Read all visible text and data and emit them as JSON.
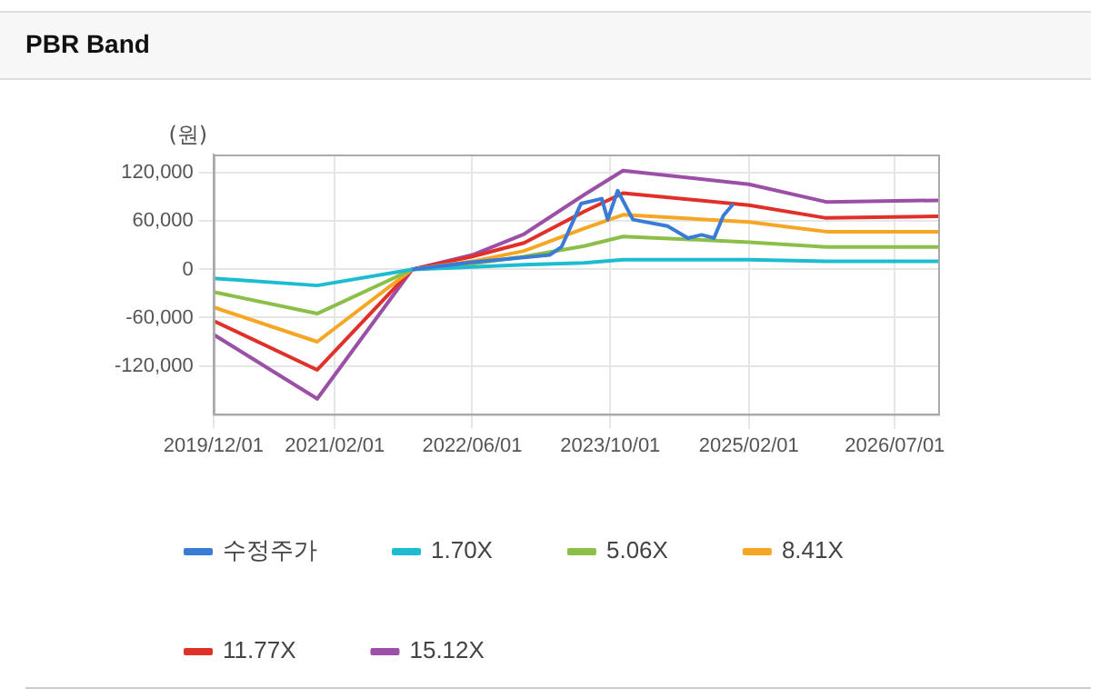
{
  "chart_data": {
    "type": "line",
    "title": "PBR Band",
    "ylabel": "(원)",
    "xlim": [
      "2019-12-01",
      "2026-12-01"
    ],
    "xticks": [
      {
        "value": "2019-12-01",
        "label": "2019/12/01"
      },
      {
        "value": "2021-02-01",
        "label": "2021/02/01"
      },
      {
        "value": "2022-06-01",
        "label": "2022/06/01"
      },
      {
        "value": "2023-10-01",
        "label": "2023/10/01"
      },
      {
        "value": "2025-02-01",
        "label": "2025/02/01"
      },
      {
        "value": "2026-07-01",
        "label": "2026/07/01"
      }
    ],
    "ylim": [
      -180000,
      143000
    ],
    "yticks": [
      {
        "value": -120000,
        "label": "-120,000"
      },
      {
        "value": -60000,
        "label": "-60,000"
      },
      0,
      {
        "value": 60000,
        "label": "60,000"
      },
      {
        "value": 120000,
        "label": "120,000"
      }
    ],
    "grid": true,
    "legend": "bottom",
    "marker": "none",
    "line_style": "solid",
    "series": [
      {
        "name": "수정주가",
        "color": "#3a7bd5",
        "x": [
          "2021-11-01",
          "2022-06-01",
          "2022-12-01",
          "2023-03-01",
          "2023-04-12",
          "2023-06-20",
          "2023-09-01",
          "2023-09-22",
          "2023-10-27",
          "2023-12-20",
          "2024-04-20",
          "2024-07-01",
          "2024-08-18",
          "2024-10-01",
          "2024-11-03",
          "2024-12-09"
        ],
        "values": [
          0,
          9000,
          15000,
          18000,
          28000,
          82000,
          88000,
          62000,
          98000,
          62000,
          54000,
          39000,
          43000,
          39000,
          67000,
          82000
        ]
      },
      {
        "name": "1.70X",
        "color": "#1ebcd0",
        "x": [
          "2019-12-01",
          "2020-12-01",
          "2021-11-01",
          "2022-06-01",
          "2022-12-01",
          "2023-07-01",
          "2023-11-15",
          "2025-02-01",
          "2025-11-01",
          "2026-12-01"
        ],
        "values": [
          -11000,
          -20000,
          0,
          3000,
          6000,
          8000,
          12000,
          12000,
          10000,
          10000
        ]
      },
      {
        "name": "5.06X",
        "color": "#8cbf4a",
        "x": [
          "2019-12-01",
          "2020-12-01",
          "2021-11-01",
          "2022-06-01",
          "2022-12-01",
          "2023-07-01",
          "2023-11-15",
          "2025-02-01",
          "2025-11-01",
          "2026-12-01"
        ],
        "values": [
          -28000,
          -55000,
          0,
          7000,
          16000,
          29000,
          41000,
          34000,
          28000,
          28000
        ]
      },
      {
        "name": "8.41X",
        "color": "#f5a623",
        "x": [
          "2019-12-01",
          "2020-12-01",
          "2021-11-01",
          "2022-06-01",
          "2022-12-01",
          "2023-07-01",
          "2023-11-15",
          "2025-02-01",
          "2025-11-01",
          "2026-12-01"
        ],
        "values": [
          -47000,
          -90000,
          0,
          10000,
          23000,
          51000,
          68000,
          59000,
          47000,
          47000
        ]
      },
      {
        "name": "11.77X",
        "color": "#e0302a",
        "x": [
          "2019-12-01",
          "2020-12-01",
          "2021-11-01",
          "2022-06-01",
          "2022-12-01",
          "2023-07-01",
          "2023-11-15",
          "2025-02-01",
          "2025-11-01",
          "2026-12-01"
        ],
        "values": [
          -64000,
          -125000,
          0,
          16000,
          33000,
          72000,
          95000,
          80000,
          64000,
          66000
        ]
      },
      {
        "name": "15.12X",
        "color": "#9b4fa6",
        "x": [
          "2019-12-01",
          "2020-12-01",
          "2021-11-01",
          "2022-06-01",
          "2022-12-01",
          "2023-07-01",
          "2023-11-15",
          "2025-02-01",
          "2025-11-01",
          "2026-12-01"
        ],
        "values": [
          -81000,
          -161000,
          0,
          18000,
          44000,
          93000,
          123000,
          106000,
          84000,
          86000
        ]
      }
    ]
  }
}
